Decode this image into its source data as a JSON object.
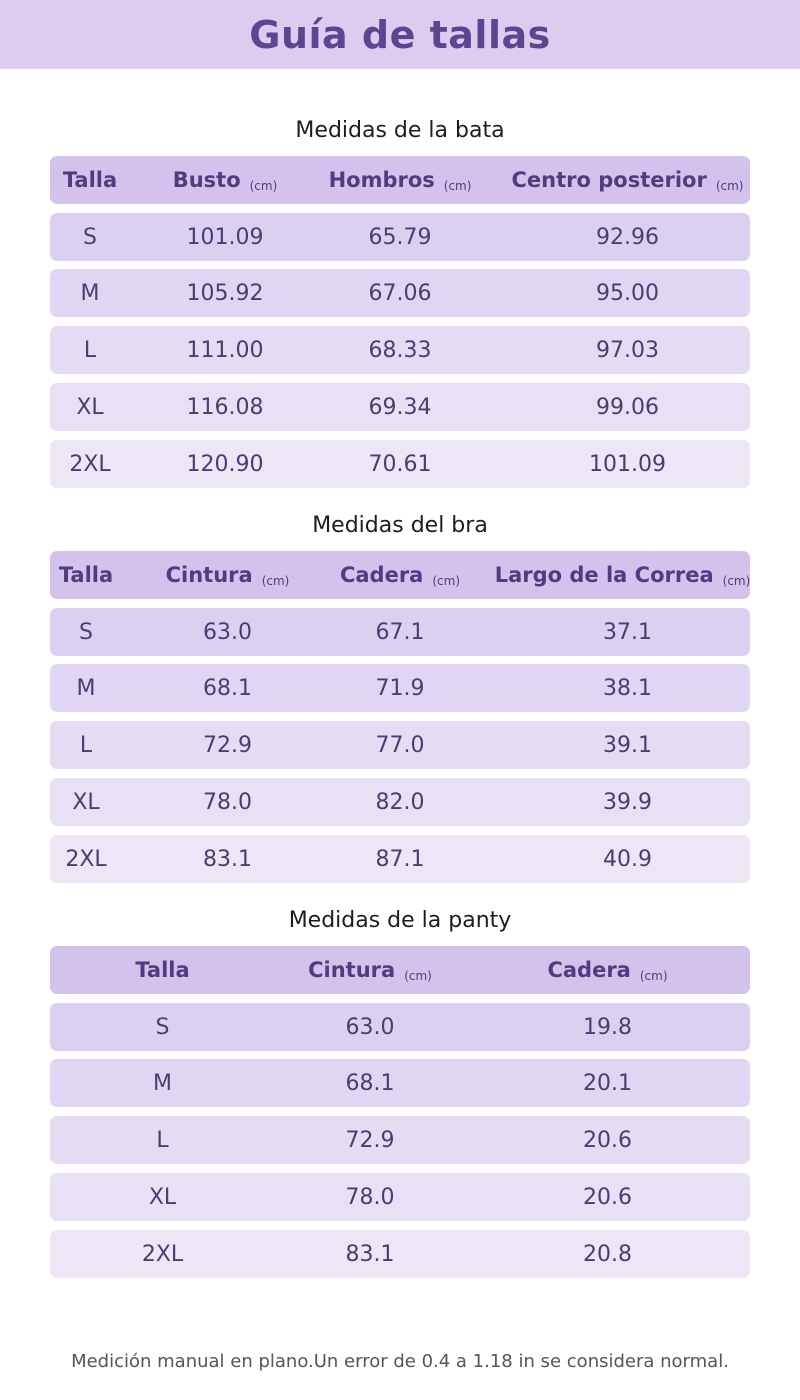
{
  "title": "Guía de tallas",
  "unit": "(cm)",
  "robe": {
    "title": "Medidas de la bata",
    "headers": [
      "Talla",
      "Busto",
      "Hombros",
      "Centro posterior"
    ],
    "rows": [
      [
        "S",
        "101.09",
        "65.79",
        "92.96"
      ],
      [
        "M",
        "105.92",
        "67.06",
        "95.00"
      ],
      [
        "L",
        "111.00",
        "68.33",
        "97.03"
      ],
      [
        "XL",
        "116.08",
        "69.34",
        "99.06"
      ],
      [
        "2XL",
        "120.90",
        "70.61",
        "101.09"
      ]
    ]
  },
  "bra": {
    "title": "Medidas del bra",
    "headers": [
      "Talla",
      "Cintura",
      "Cadera",
      "Largo de la Correa"
    ],
    "rows": [
      [
        "S",
        "63.0",
        "67.1",
        "37.1"
      ],
      [
        "M",
        "68.1",
        "71.9",
        "38.1"
      ],
      [
        "L",
        "72.9",
        "77.0",
        "39.1"
      ],
      [
        "XL",
        "78.0",
        "82.0",
        "39.9"
      ],
      [
        "2XL",
        "83.1",
        "87.1",
        "40.9"
      ]
    ]
  },
  "panty": {
    "title": "Medidas de la panty",
    "headers": [
      "Talla",
      "Cintura",
      "Cadera"
    ],
    "rows": [
      [
        "S",
        "63.0",
        "19.8"
      ],
      [
        "M",
        "68.1",
        "20.1"
      ],
      [
        "L",
        "72.9",
        "20.6"
      ],
      [
        "XL",
        "78.0",
        "20.6"
      ],
      [
        "2XL",
        "83.1",
        "20.8"
      ]
    ]
  },
  "footnote": "Medición manual en plano.Un error de 0.4 a 1.18 in se considera normal.",
  "colors": {
    "banner": "#dccdf0",
    "title_text": "#5c4691",
    "header_row": "#d3c3ec",
    "body_text": "#4a3d72"
  }
}
